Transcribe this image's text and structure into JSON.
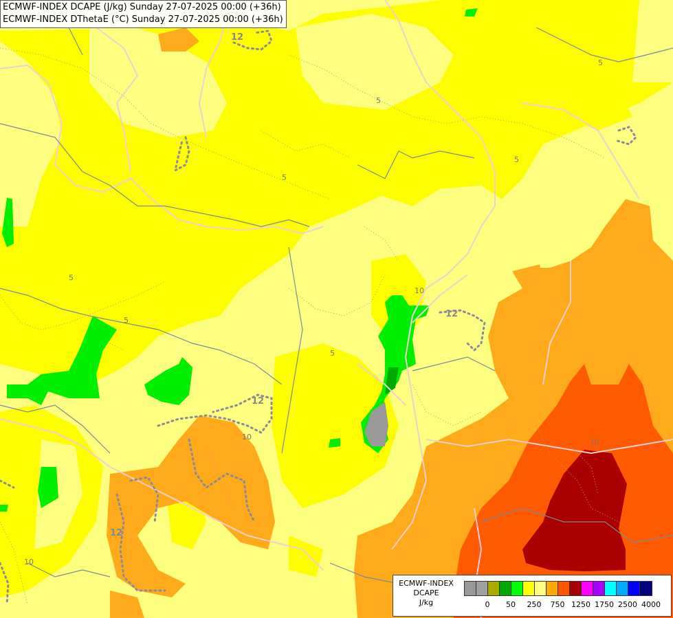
{
  "title": {
    "line1": "ECMWF-INDEX DCAPE (J/kg) Sunday 27-07-2025 00:00 (+36h)",
    "line2": "ECMWF-INDEX DThetaE (°C) Sunday 27-07-2025 00:00 (+36h)"
  },
  "legend": {
    "line1": "ECMWF-INDEX",
    "line2": "DCAPE",
    "line3": "J/kg",
    "colors": [
      "#999999",
      "#a0a0a0",
      "#aaaa00",
      "#00aa00",
      "#00ff00",
      "#ffff00",
      "#ffff80",
      "#ffaa00",
      "#ff5500",
      "#aa0000",
      "#ff00ff",
      "#aa00ff",
      "#00ffff",
      "#00aaff",
      "#0000ff",
      "#000080"
    ],
    "ticks": [
      "0",
      "50",
      "250",
      "750",
      "1250",
      "1750",
      "2500",
      "4000"
    ]
  },
  "contour_labels": {
    "l5a": "5",
    "l5b": "5",
    "l5c": "5",
    "l5d": "5",
    "l5e": "5",
    "l5f": "5",
    "l5g": "5",
    "l10a": "10",
    "l10b": "10",
    "l10c": "10",
    "l10d": "10",
    "l12a": "12",
    "l12b": "12",
    "l12c": "12",
    "l12d": "12"
  }
}
